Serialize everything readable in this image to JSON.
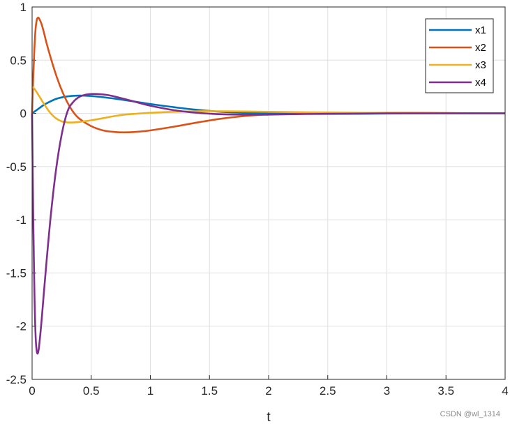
{
  "chart_data": {
    "type": "line",
    "xlabel": "t",
    "ylabel": "",
    "title": "",
    "xlim": [
      0,
      4
    ],
    "ylim": [
      -2.5,
      1
    ],
    "xticks": [
      "0",
      "0.5",
      "1",
      "1.5",
      "2",
      "2.5",
      "3",
      "3.5",
      "4"
    ],
    "yticks": [
      "1",
      "0.5",
      "0",
      "-0.5",
      "-1",
      "-1.5",
      "-2",
      "-2.5"
    ],
    "grid": true,
    "legend_position": "top-right",
    "colors": [
      "#0072BD",
      "#D95319",
      "#EDB120",
      "#7E2F8E"
    ],
    "series": [
      {
        "name": "x1",
        "x": [
          0,
          0.05,
          0.1,
          0.15,
          0.2,
          0.25,
          0.3,
          0.35,
          0.4,
          0.45,
          0.5,
          0.6,
          0.7,
          0.8,
          0.9,
          1.0,
          1.2,
          1.4,
          1.6,
          1.8,
          2.0,
          2.5,
          3.0,
          3.5,
          4.0
        ],
        "values": [
          0,
          0.04,
          0.08,
          0.11,
          0.135,
          0.15,
          0.16,
          0.165,
          0.167,
          0.166,
          0.163,
          0.152,
          0.138,
          0.122,
          0.105,
          0.088,
          0.058,
          0.033,
          0.015,
          0.005,
          0,
          -0.005,
          -0.002,
          0,
          0
        ]
      },
      {
        "name": "x2",
        "x": [
          0,
          0.01,
          0.02,
          0.03,
          0.04,
          0.05,
          0.06,
          0.08,
          0.1,
          0.12,
          0.15,
          0.2,
          0.25,
          0.3,
          0.35,
          0.4,
          0.5,
          0.6,
          0.7,
          0.8,
          0.9,
          1.0,
          1.2,
          1.4,
          1.6,
          1.8,
          2.0,
          2.5,
          3.0,
          3.5,
          4.0
        ],
        "values": [
          0,
          0.35,
          0.62,
          0.8,
          0.88,
          0.9,
          0.89,
          0.84,
          0.76,
          0.67,
          0.55,
          0.37,
          0.22,
          0.1,
          0.01,
          -0.05,
          -0.12,
          -0.16,
          -0.175,
          -0.178,
          -0.172,
          -0.16,
          -0.125,
          -0.085,
          -0.05,
          -0.025,
          -0.012,
          0,
          0.005,
          0.003,
          0
        ]
      },
      {
        "name": "x3",
        "x": [
          0,
          0.02,
          0.05,
          0.1,
          0.15,
          0.2,
          0.25,
          0.3,
          0.35,
          0.4,
          0.5,
          0.6,
          0.7,
          0.8,
          1.0,
          1.2,
          1.4,
          1.6,
          1.8,
          2.0,
          2.5,
          3.0,
          3.5,
          4.0
        ],
        "values": [
          0.25,
          0.23,
          0.18,
          0.09,
          0.01,
          -0.045,
          -0.075,
          -0.085,
          -0.085,
          -0.08,
          -0.065,
          -0.045,
          -0.025,
          -0.01,
          0.005,
          0.015,
          0.02,
          0.02,
          0.018,
          0.015,
          0.008,
          0.003,
          0,
          0
        ]
      },
      {
        "name": "x4",
        "x": [
          0,
          0.005,
          0.01,
          0.02,
          0.03,
          0.04,
          0.05,
          0.06,
          0.08,
          0.1,
          0.15,
          0.2,
          0.25,
          0.3,
          0.35,
          0.4,
          0.45,
          0.5,
          0.55,
          0.6,
          0.65,
          0.7,
          0.8,
          0.9,
          1.0,
          1.2,
          1.4,
          1.6,
          1.8,
          2.0,
          2.5,
          3.0,
          3.5,
          4.0
        ],
        "values": [
          0,
          -0.5,
          -1.0,
          -1.7,
          -2.1,
          -2.24,
          -2.25,
          -2.18,
          -1.95,
          -1.68,
          -1.05,
          -0.55,
          -0.2,
          0.02,
          0.11,
          0.155,
          0.175,
          0.182,
          0.182,
          0.178,
          0.17,
          0.158,
          0.13,
          0.1,
          0.072,
          0.03,
          0.005,
          -0.008,
          -0.012,
          -0.01,
          -0.004,
          0,
          0,
          0
        ]
      }
    ]
  },
  "watermark": "CSDN @wl_1314"
}
